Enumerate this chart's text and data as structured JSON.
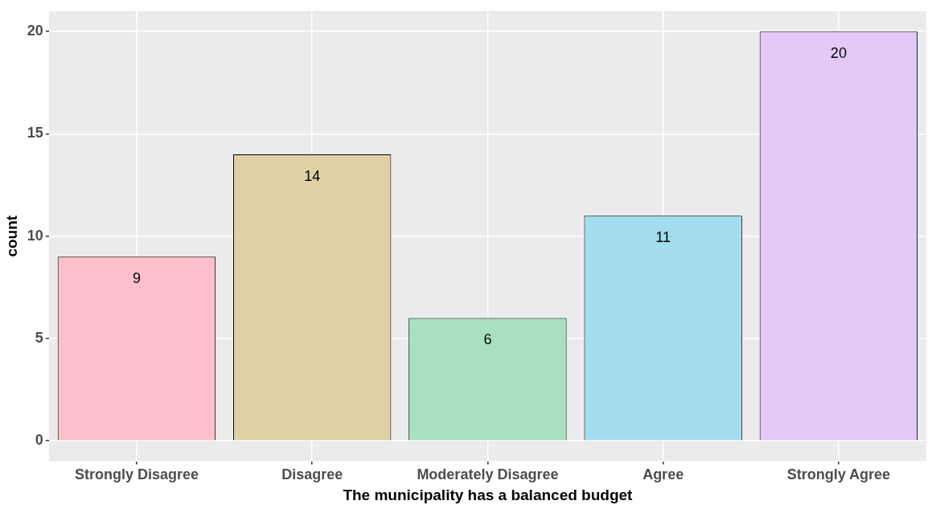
{
  "chart_data": {
    "type": "bar",
    "xlabel": "The municipality has a balanced budget",
    "ylabel": "count",
    "categories": [
      "Strongly Disagree",
      "Disagree",
      "Moderately Disagree",
      "Agree",
      "Strongly Agree"
    ],
    "values": [
      9,
      14,
      6,
      11,
      20
    ],
    "colors": [
      "#ffc0cb",
      "#e0d0a6",
      "#a8e0c0",
      "#a3dcef",
      "#e3c8f8"
    ],
    "ylim": [
      -1,
      21
    ],
    "yticks": [
      0,
      5,
      10,
      15,
      20
    ],
    "grid": true,
    "data_labels": true
  }
}
